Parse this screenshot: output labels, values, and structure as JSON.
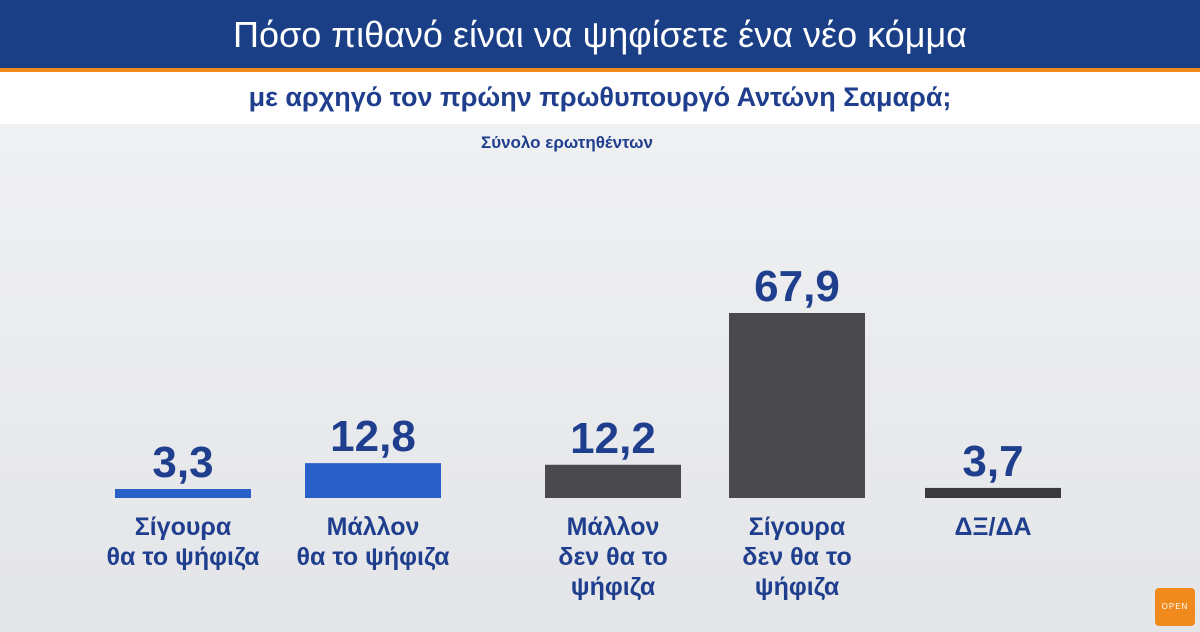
{
  "header": {
    "title": "Πόσο πιθανό είναι να ψηφίσετε ένα νέο κόμμα",
    "subtitle": "με αρχηγό τον πρώην πρωθυπουργό Αντώνη Σαμαρά;",
    "note": "Σύνολο ερωτηθέντων"
  },
  "logo": {
    "text": "OPEN"
  },
  "chart_data": {
    "type": "bar",
    "title": "Πόσο πιθανό είναι να ψηφίσετε ένα νέο κόμμα με αρχηγό τον πρώην πρωθυπουργό Αντώνη Σαμαρά;",
    "categories": [
      [
        "Σίγουρα",
        "θα το ψήφιζα"
      ],
      [
        "Μάλλον",
        "θα το ψήφιζα"
      ],
      [
        "Μάλλον",
        "δεν θα το",
        "ψήφιζα"
      ],
      [
        "Σίγουρα",
        "δεν θα το",
        "ψήφιζα"
      ],
      [
        "ΔΞ/ΔΑ"
      ]
    ],
    "values": [
      3.3,
      12.8,
      12.2,
      67.9,
      3.7
    ],
    "value_labels": [
      "3,3",
      "12,8",
      "12,2",
      "67,9",
      "3,7"
    ],
    "colors": [
      "#2860c8",
      "#2860c8",
      "#4a4a4e",
      "#4a4a4e",
      "#3a3a3c"
    ],
    "grid": false,
    "legend": "none"
  }
}
